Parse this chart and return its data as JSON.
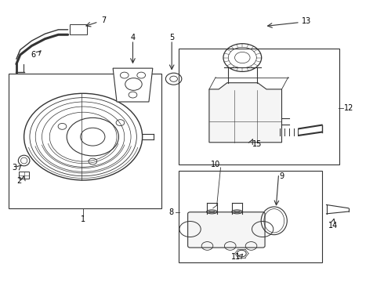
{
  "bg_color": "#ffffff",
  "line_color": "#333333",
  "text_color": "#000000",
  "fig_width": 4.9,
  "fig_height": 3.6,
  "dpi": 100
}
